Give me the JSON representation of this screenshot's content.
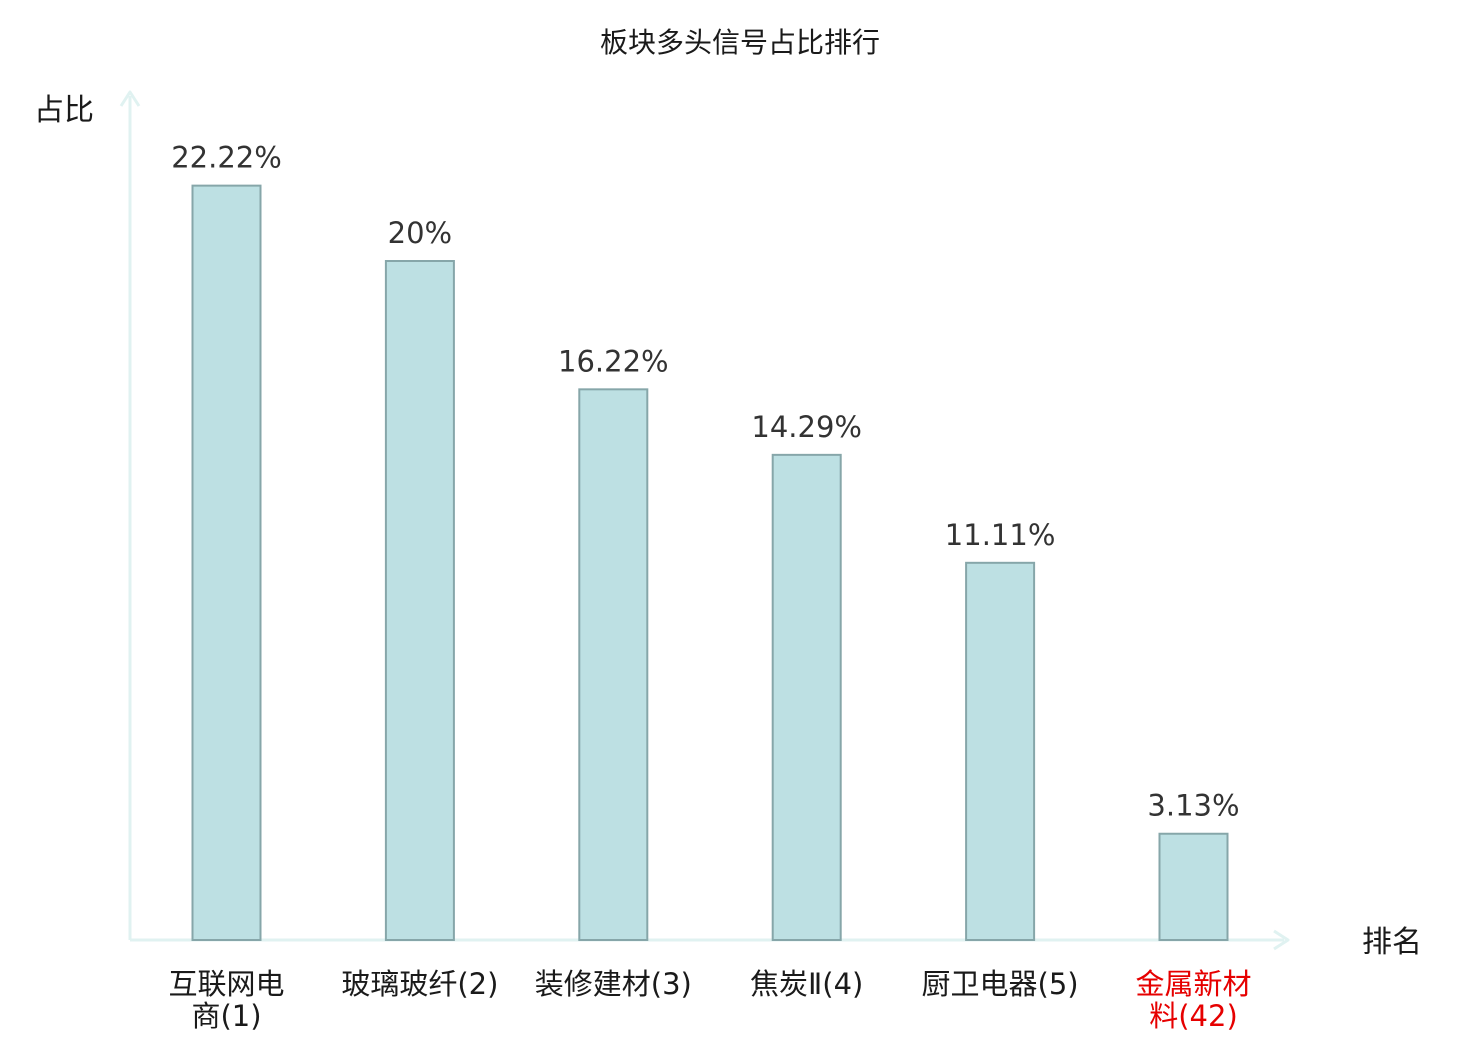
{
  "chart_data": {
    "type": "bar",
    "title": "板块多头信号占比排行",
    "xlabel": "排名",
    "ylabel": "占比",
    "categories": [
      [
        "互联网电",
        "商(1)"
      ],
      [
        "玻璃玻纤(2)"
      ],
      [
        "装修建材(3)"
      ],
      [
        "焦炭Ⅱ(4)"
      ],
      [
        "厨卫电器(5)"
      ],
      [
        "金属新材",
        "料(42)"
      ]
    ],
    "values": [
      22.22,
      20,
      16.22,
      14.29,
      11.11,
      3.13
    ],
    "value_labels": [
      "22.22%",
      "20%",
      "16.22%",
      "14.29%",
      "11.11%",
      "3.13%"
    ],
    "highlight_index": 5,
    "ylim": [
      0,
      25
    ],
    "grid": false,
    "colors": {
      "bar_fill": "#bde0e3",
      "bar_stroke": "#86a6a9",
      "axis": "#e0f2f1",
      "text": "#1a1a1a",
      "value_label": "#333333",
      "highlight": "#e60000"
    }
  }
}
